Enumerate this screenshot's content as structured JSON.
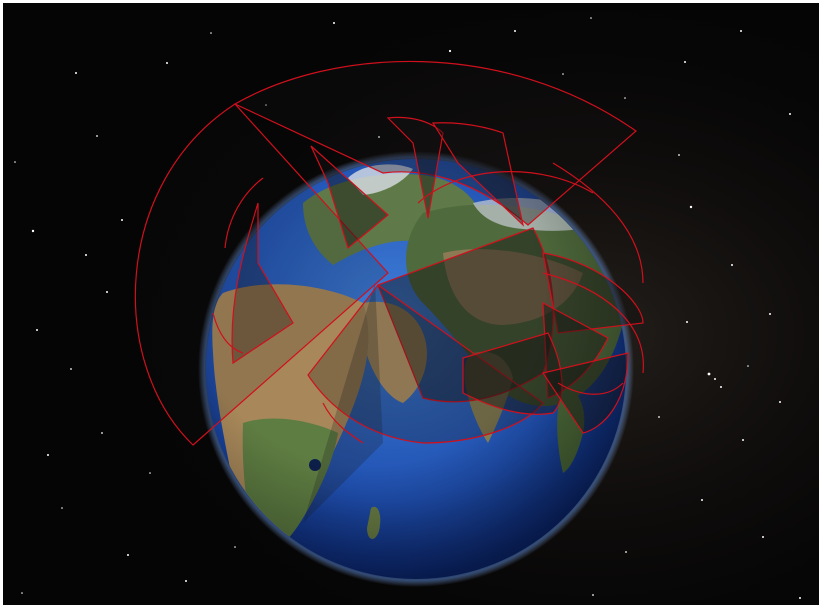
{
  "viewer": {
    "kind": "3d-globe-view",
    "colors": {
      "space": "#050506",
      "ocean_light": "#3b78d6",
      "ocean_dark": "#0c2a7a",
      "atmosphere": "#4a8cff",
      "land_desert": "#a8885a",
      "land_green": "#5b7a43",
      "land_dark": "#3c4a2f",
      "ice": "#d9dfe6",
      "overlay_outline": "#d0101c",
      "overlay_fill": "rgba(20,18,18,0.45)"
    },
    "overlay_count": 12
  }
}
